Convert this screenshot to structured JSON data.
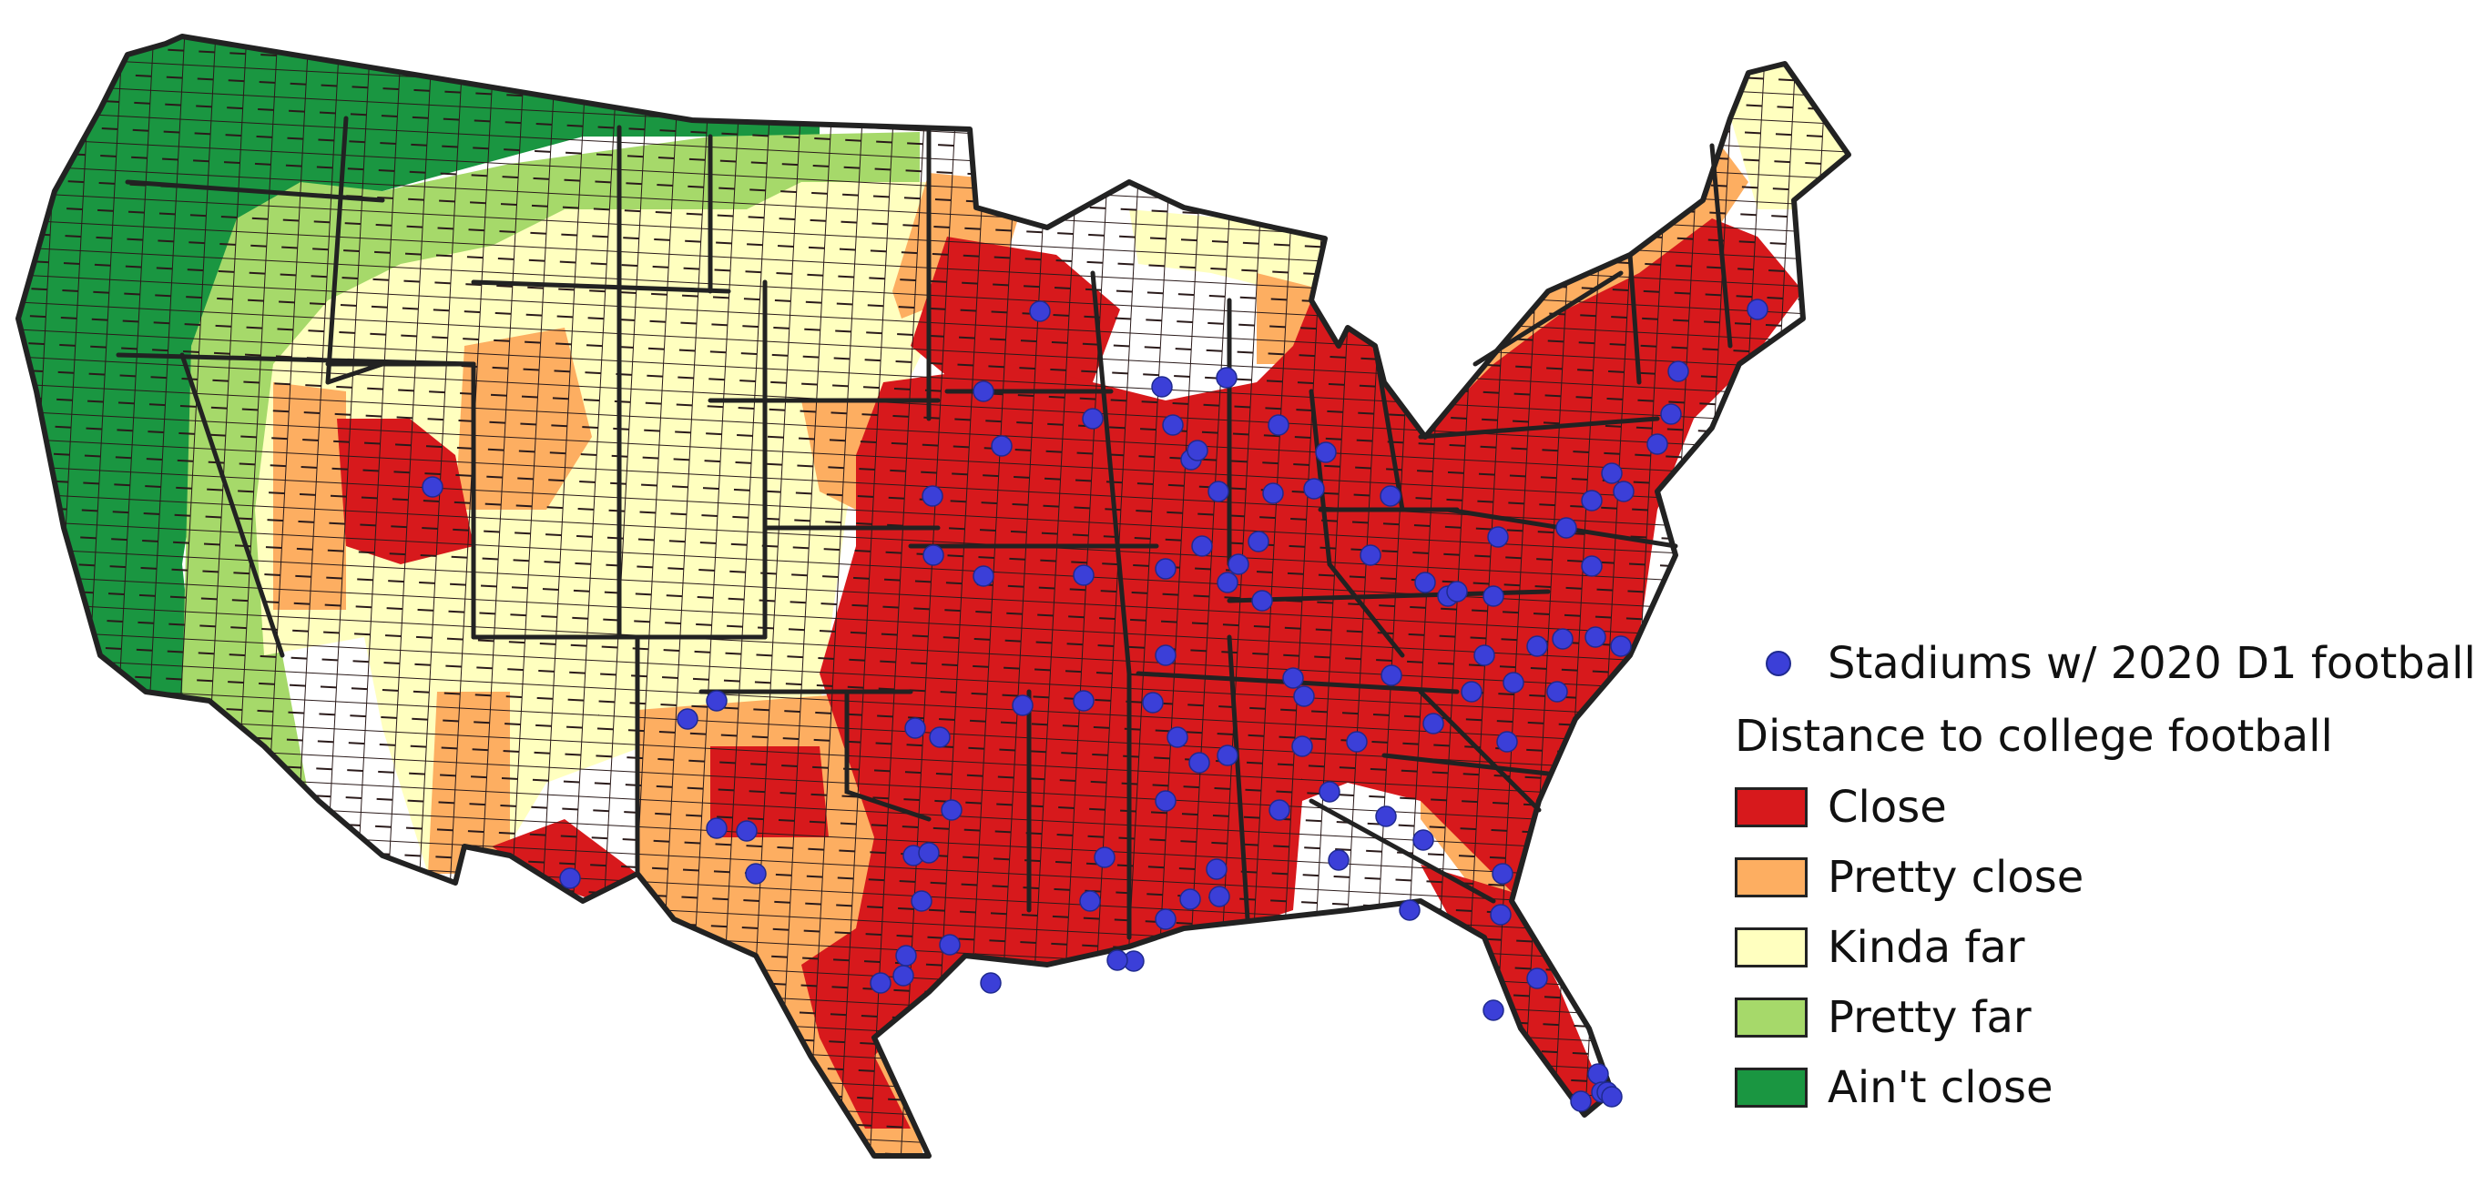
{
  "legend": {
    "stadium_label": "Stadiums w/ 2020 D1 football",
    "title": "Distance to college football",
    "categories": [
      {
        "key": "close",
        "label": "Close",
        "color": "#d7191c"
      },
      {
        "key": "pretty_close",
        "label": "Pretty close",
        "color": "#fdae61"
      },
      {
        "key": "kinda_far",
        "label": "Kinda far",
        "color": "#ffffbf"
      },
      {
        "key": "pretty_far",
        "label": "Pretty far",
        "color": "#a6d96a"
      },
      {
        "key": "aint_close",
        "label": "Ain't close",
        "color": "#1a9641"
      }
    ]
  },
  "colors": {
    "stadium": "#3b3fd8",
    "border": "#222222",
    "county_line": "#2a1a1a"
  }
}
